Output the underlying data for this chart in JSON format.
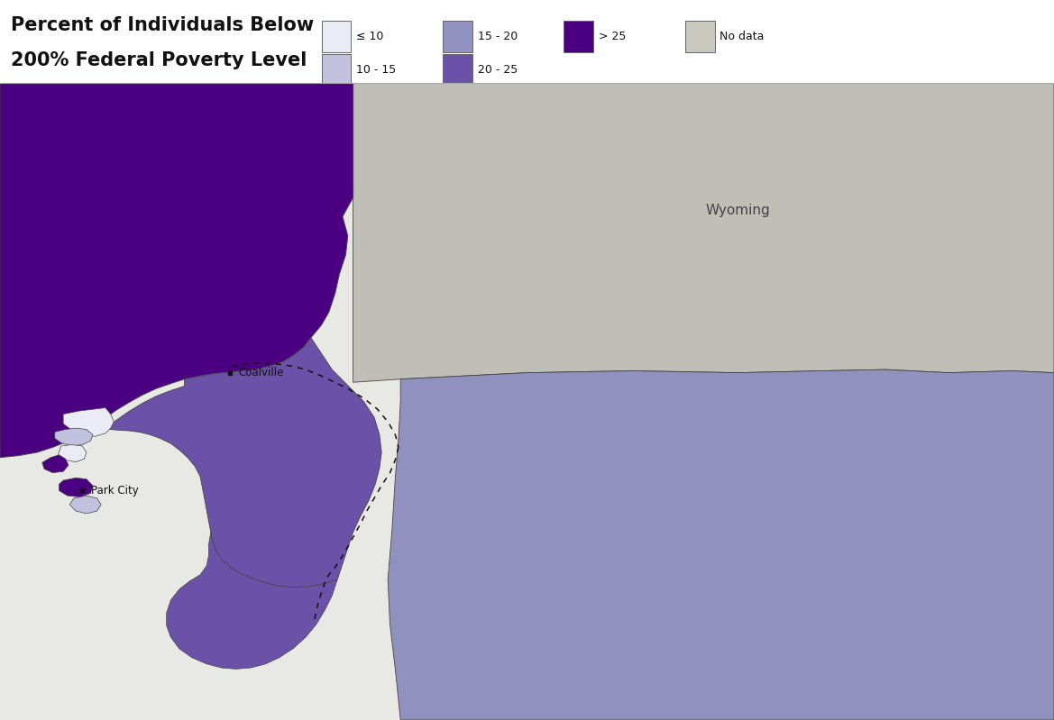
{
  "title_line1": "Percent of Individuals Below",
  "title_line2": "200% Federal Poverty Level",
  "title_fontsize": 15,
  "legend_items": [
    {
      "label": "≤ 10",
      "color": "#ebebf5",
      "row": 0,
      "col": 0
    },
    {
      "label": "10 - 15",
      "color": "#c2c2de",
      "row": 1,
      "col": 0
    },
    {
      "label": "15 - 20",
      "color": "#9191c0",
      "row": 0,
      "col": 1
    },
    {
      "label": "20 - 25",
      "color": "#6b52a8",
      "row": 1,
      "col": 1
    },
    {
      "label": "> 25",
      "color": "#4b0082",
      "row": 0,
      "col": 2
    },
    {
      "label": "No data",
      "color": "#c8c8bc",
      "row": 0,
      "col": 3
    }
  ],
  "wyoming_label": "Wyoming",
  "coalville_label": "Coalville",
  "parkcity_label": "Park City",
  "color_le10": "#ebebf5",
  "color_10_15": "#c2c2de",
  "color_15_20": "#9191c0",
  "color_20_25": "#6b52a8",
  "color_gt25": "#4b0082",
  "color_nodata": "#c8c8bc",
  "relief_bg": "#d8d8d0",
  "relief_light": "#e8e8e4",
  "wyoming_bg": "#bfbfb8",
  "border_color": "#444444",
  "dash_color": "#111111",
  "text_color": "#222222",
  "bg_white": "#ffffff"
}
